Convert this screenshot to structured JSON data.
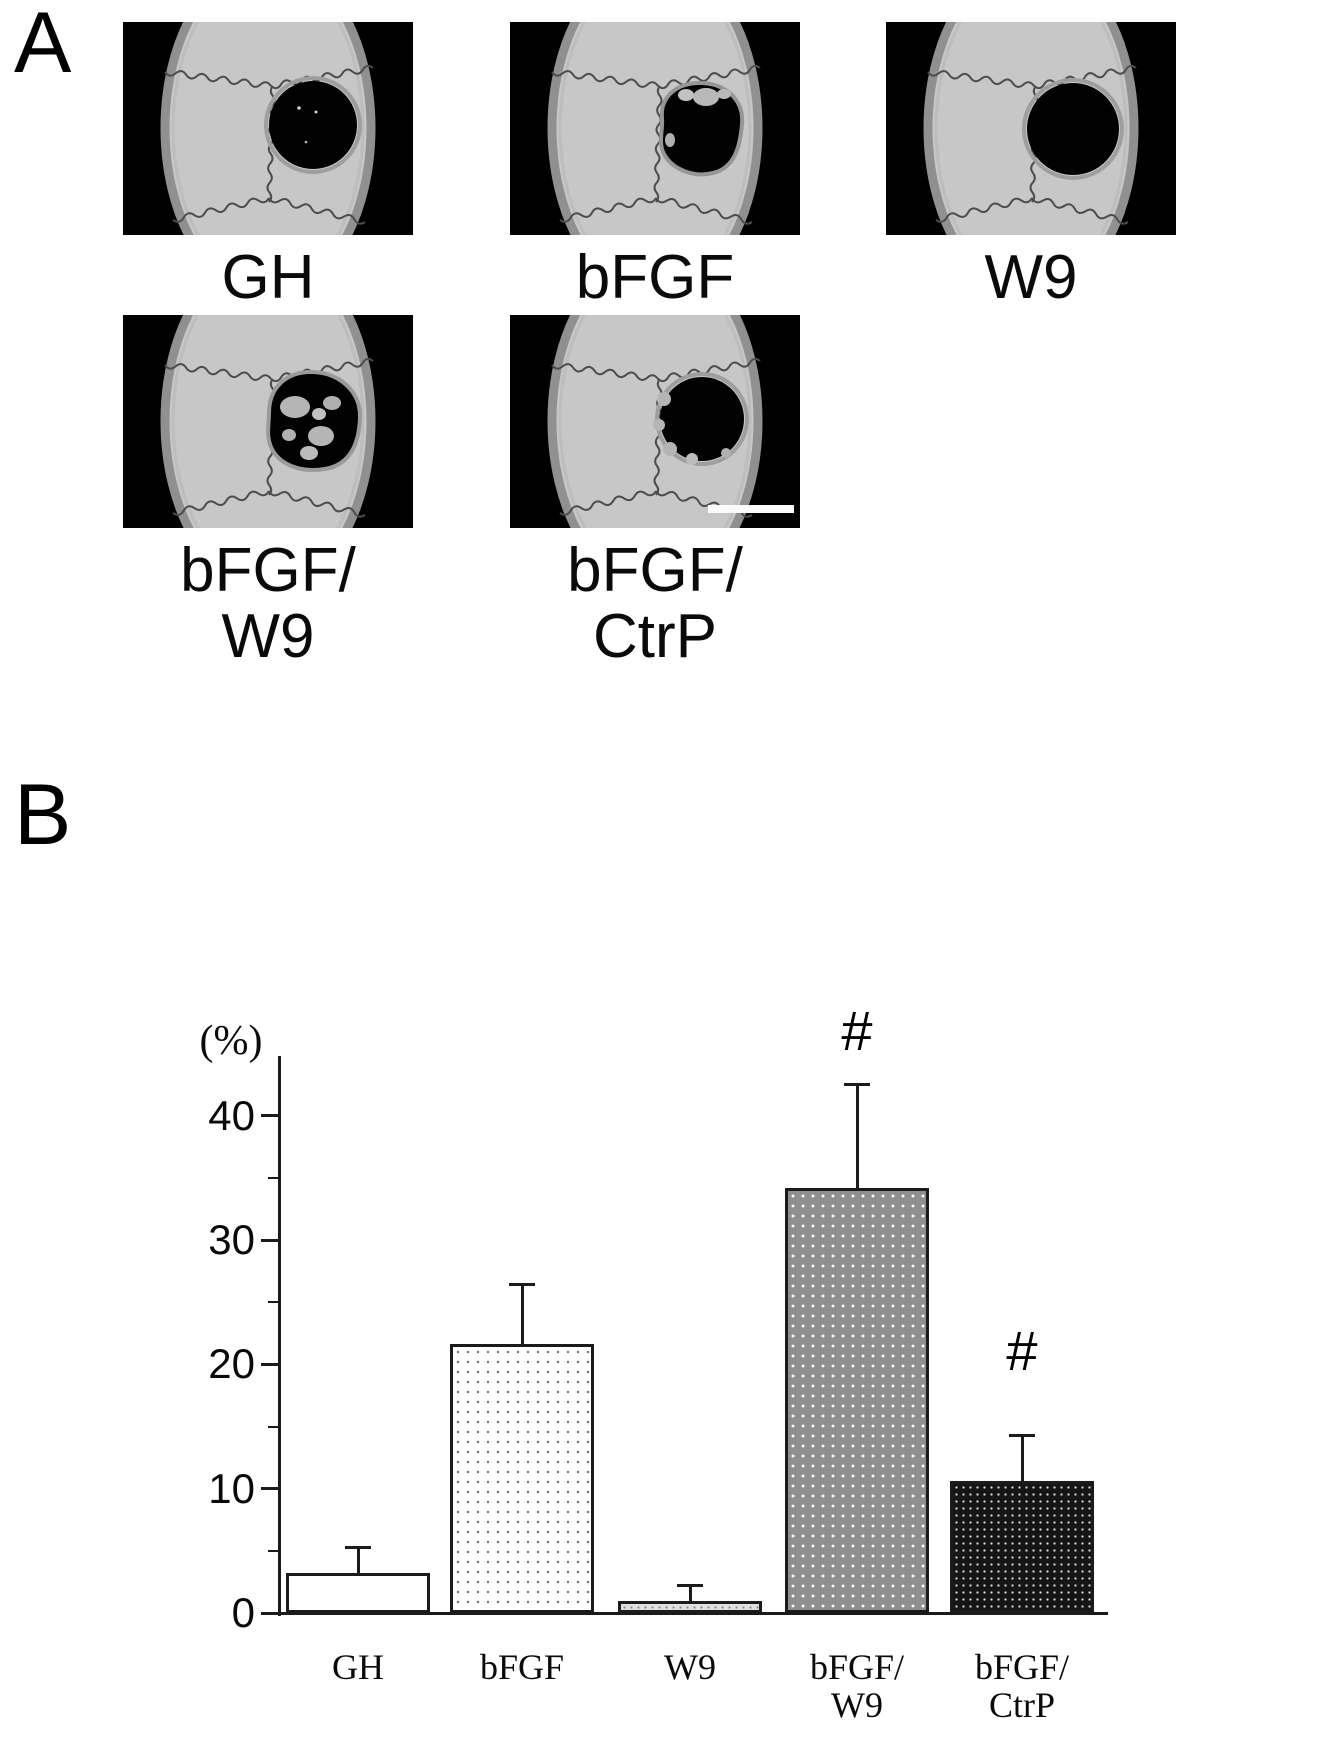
{
  "figure": {
    "panelA": {
      "letter": "A",
      "items": [
        {
          "label_lines": [
            "GH"
          ],
          "image": "skull-round-defect-image",
          "scale_bar": false
        },
        {
          "label_lines": [
            "bFGF"
          ],
          "image": "skull-irregular-defect-image",
          "scale_bar": false
        },
        {
          "label_lines": [
            "W9"
          ],
          "image": "skull-large-round-defect-image",
          "scale_bar": false
        },
        {
          "label_lines": [
            "bFGF/",
            "W9"
          ],
          "image": "skull-healing-defect-image",
          "scale_bar": false
        },
        {
          "label_lines": [
            "bFGF/",
            "CtrP"
          ],
          "image": "skull-bumpy-defect-image",
          "scale_bar": true
        }
      ]
    },
    "panelB": {
      "letter": "B"
    }
  },
  "chart_data": {
    "type": "bar",
    "title": "",
    "xlabel": "",
    "ylabel": "(%)",
    "categories": [
      "GH",
      "bFGF",
      "W9",
      "bFGF/\nW9",
      "bFGF/\nCtrP"
    ],
    "values": [
      3.2,
      21.6,
      1.0,
      34.2,
      10.6
    ],
    "error_plus": [
      2.1,
      4.8,
      1.2,
      8.3,
      3.7
    ],
    "ylim": [
      0,
      44.8
    ],
    "yticks_major": [
      0,
      10,
      20,
      30,
      40
    ],
    "yticks_minor": [
      5,
      15,
      25,
      35
    ],
    "grid": false,
    "legend_position": "none",
    "bar_fills": [
      "plain-white",
      "fine-dots-on-white",
      "dots-on-lightgray",
      "white-dots-on-gray",
      "white-dots-on-black"
    ],
    "annotations": [
      {
        "text": "#",
        "category_index": 3,
        "y": 46.8
      },
      {
        "text": "#",
        "category_index": 4,
        "y": 21.1
      }
    ]
  },
  "colors": {
    "background": "#ffffff",
    "axis": "#1a1a1a",
    "bar_border": "#1b1b1b",
    "ct_background": "#000000",
    "bone": "#c7c7c7",
    "scale_bar": "#fbfbfb"
  }
}
